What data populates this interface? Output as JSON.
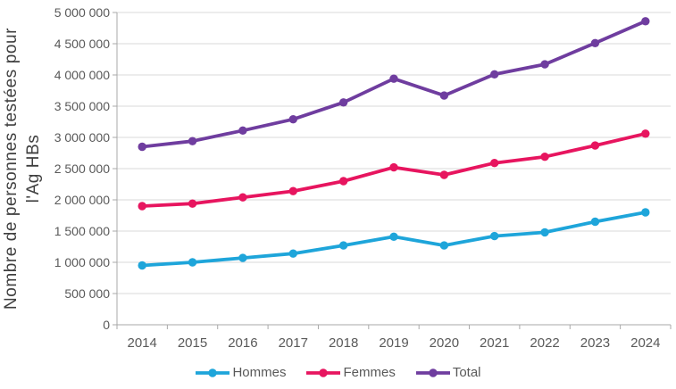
{
  "chart_data": {
    "type": "line",
    "title": "",
    "xlabel": "",
    "ylabel": "Nombre de personnes testées pour\nl'Ag HBs",
    "categories": [
      "2014",
      "2015",
      "2016",
      "2017",
      "2018",
      "2019",
      "2020",
      "2021",
      "2022",
      "2023",
      "2024"
    ],
    "series": [
      {
        "name": "Hommes",
        "color": "#1EA5DA",
        "values": [
          950000,
          1000000,
          1070000,
          1140000,
          1270000,
          1410000,
          1270000,
          1420000,
          1480000,
          1650000,
          1800000
        ]
      },
      {
        "name": "Femmes",
        "color": "#E7155F",
        "values": [
          1900000,
          1940000,
          2040000,
          2140000,
          2300000,
          2520000,
          2400000,
          2590000,
          2690000,
          2870000,
          3060000
        ]
      },
      {
        "name": "Total",
        "color": "#6F3D9F",
        "values": [
          2850000,
          2940000,
          3110000,
          3290000,
          3560000,
          3940000,
          3670000,
          4010000,
          4170000,
          4510000,
          4860000
        ]
      }
    ],
    "ylim": [
      0,
      5000000
    ],
    "ytick_step": 500000,
    "ytick_labels": [
      "0",
      "500 000",
      "1 000 000",
      "1 500 000",
      "2 000 000",
      "2 500 000",
      "3 000 000",
      "3 500 000",
      "4 000 000",
      "4 500 000",
      "5 000 000"
    ],
    "grid": true,
    "legend_position": "bottom"
  },
  "colors": {
    "grid": "#D9D9D9",
    "axis": "#A9A9A9",
    "tick_label": "#595959",
    "axis_title": "#3F3F3F",
    "background": "#FFFFFF"
  }
}
